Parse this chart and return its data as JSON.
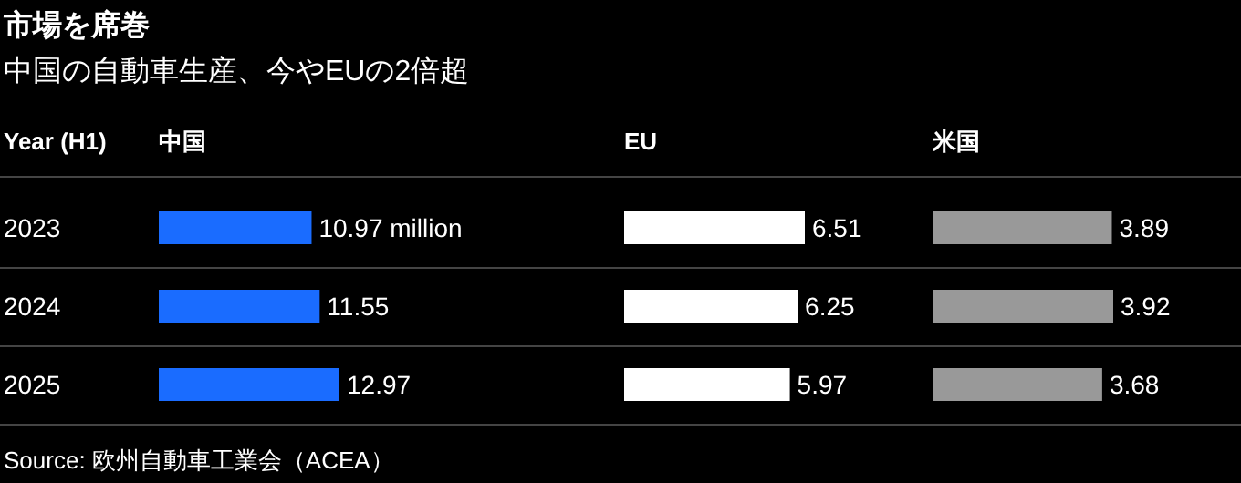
{
  "chart_data": [
    {
      "type": "bar",
      "orientation": "horizontal",
      "title": "市場を席巻",
      "subtitle": "中国の自動車生産、今やEUの2倍超",
      "ylabel": "Year (H1)",
      "tick_labels": "y",
      "categories": [
        "2023",
        "2024",
        "2025"
      ],
      "series": [
        {
          "name": "中国",
          "color": "#1a6cff",
          "values": [
            10.97,
            11.55,
            12.97
          ],
          "value_labels": [
            "10.97 million",
            "11.55",
            "12.97"
          ]
        }
      ],
      "annotations": [
        "Source: 欧州自動車工業会（ACEA）"
      ]
    },
    {
      "type": "bar",
      "orientation": "horizontal",
      "tick_labels": false,
      "categories": [
        "2023",
        "2024",
        "2025"
      ],
      "series": [
        {
          "name": "EU",
          "color": "#ffffff",
          "values": [
            6.51,
            6.25,
            5.97
          ],
          "value_labels": [
            "6.51",
            "6.25",
            "5.97"
          ]
        }
      ]
    },
    {
      "type": "bar",
      "orientation": "horizontal",
      "tick_labels": false,
      "categories": [
        "2023",
        "2024",
        "2025"
      ],
      "series": [
        {
          "name": "米国",
          "color": "#999999",
          "values": [
            3.89,
            3.92,
            3.68
          ],
          "value_labels": [
            "3.89",
            "3.92",
            "3.68"
          ]
        }
      ]
    }
  ]
}
